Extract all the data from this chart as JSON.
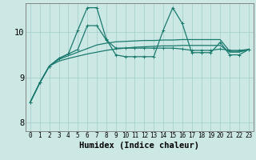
{
  "xlabel": "Humidex (Indice chaleur)",
  "background_color": "#cce8e5",
  "grid_color": "#a0ccc8",
  "line_color": "#1a7a6e",
  "xlim": [
    -0.5,
    23.5
  ],
  "ylim": [
    7.8,
    10.65
  ],
  "yticks": [
    8,
    9,
    10
  ],
  "xticks": [
    0,
    1,
    2,
    3,
    4,
    5,
    6,
    7,
    8,
    9,
    10,
    11,
    12,
    13,
    14,
    15,
    16,
    17,
    18,
    19,
    20,
    21,
    22,
    23
  ],
  "series": [
    [
      8.45,
      8.88,
      9.25,
      9.42,
      9.52,
      9.62,
      10.15,
      10.15,
      9.83,
      9.65,
      9.65,
      9.65,
      9.65,
      9.65,
      9.65,
      9.65,
      9.63,
      9.6,
      9.6,
      9.6,
      9.63,
      9.6,
      9.6,
      9.62
    ],
    [
      8.45,
      8.88,
      9.25,
      9.42,
      9.52,
      10.05,
      10.55,
      10.55,
      9.85,
      9.5,
      9.46,
      9.46,
      9.46,
      9.46,
      10.05,
      10.55,
      10.2,
      9.55,
      9.55,
      9.55,
      9.78,
      9.5,
      9.5,
      9.62
    ],
    [
      8.45,
      8.88,
      9.25,
      9.4,
      9.48,
      9.56,
      9.64,
      9.72,
      9.76,
      9.79,
      9.8,
      9.81,
      9.82,
      9.82,
      9.83,
      9.83,
      9.84,
      9.84,
      9.84,
      9.84,
      9.84,
      9.58,
      9.58,
      9.62
    ],
    [
      8.45,
      8.88,
      9.25,
      9.36,
      9.42,
      9.47,
      9.52,
      9.56,
      9.6,
      9.63,
      9.65,
      9.67,
      9.68,
      9.69,
      9.7,
      9.7,
      9.71,
      9.71,
      9.71,
      9.71,
      9.71,
      9.56,
      9.56,
      9.62
    ]
  ],
  "linewidth": 0.9,
  "fontsize_xlabel": 7.5,
  "fontsize_ytick": 7.5,
  "fontsize_xtick": 5.5
}
